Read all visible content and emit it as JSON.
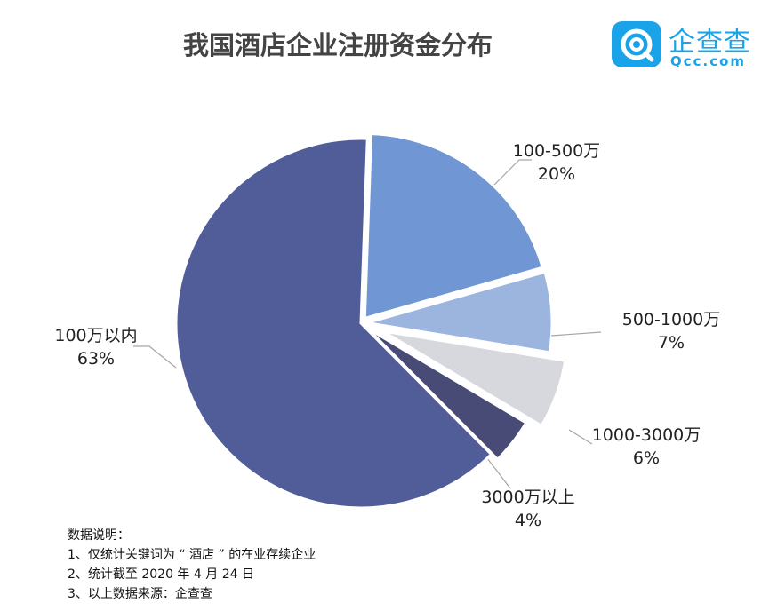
{
  "title": "我国酒店企业注册资金分布",
  "logo": {
    "name": "企查查",
    "domain": "Qcc.com",
    "color": "#1aa3e8"
  },
  "chart_data": {
    "type": "pie",
    "title": "我国酒店企业注册资金分布",
    "slices": [
      {
        "label": "100-500万",
        "pct": "20%",
        "value": 20,
        "color": "#7196d4"
      },
      {
        "label": "500-1000万",
        "pct": "7%",
        "value": 7,
        "color": "#9cb5df"
      },
      {
        "label": "1000-3000万",
        "pct": "6%",
        "value": 6,
        "color": "#d6d8dd"
      },
      {
        "label": "3000万以上",
        "pct": "4%",
        "value": 4,
        "color": "#474b75"
      },
      {
        "label": "100万以内",
        "pct": "63%",
        "value": 63,
        "color": "#505d99"
      }
    ]
  },
  "notes": {
    "heading": "数据说明：",
    "lines": [
      "1、仅统计关键词为 “ 酒店 ” 的在业存续企业",
      "2、统计截至 2020 年 4 月 24 日",
      "3、以上数据来源：企查查"
    ]
  }
}
